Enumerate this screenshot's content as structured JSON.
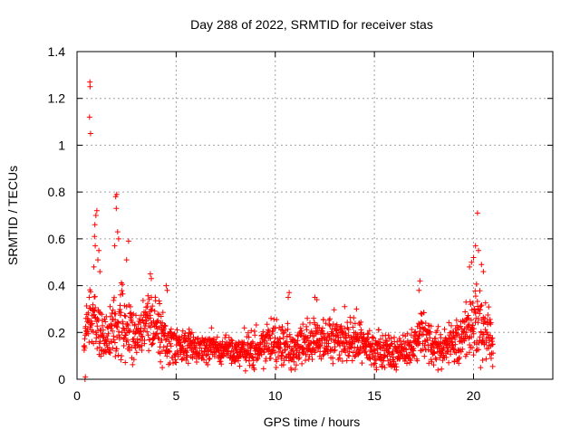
{
  "chart_data": {
    "type": "scatter",
    "title": "Day 288 of 2022, SRMTID for receiver stas",
    "xlabel": "GPS time / hours",
    "ylabel": "SRMTID / TECUs",
    "xlim": [
      0,
      24
    ],
    "ylim": [
      0,
      1.4
    ],
    "x_ticks": [
      0,
      5,
      10,
      15,
      20
    ],
    "x_tick_labels": [
      "0",
      "5",
      "10",
      "15",
      "20"
    ],
    "y_ticks": [
      0,
      0.2,
      0.4,
      0.6,
      0.8,
      1.0,
      1.2,
      1.4
    ],
    "y_tick_labels": [
      "0",
      "0.2",
      "0.4",
      "0.6",
      "0.8",
      "1",
      "1.2",
      "1.4"
    ],
    "grid": true,
    "marker": "+",
    "color": "#ff0000",
    "series": [
      {
        "name": "SRMTID",
        "envelope_hours": [
          0.35,
          0.6,
          1.0,
          1.5,
          2.0,
          2.5,
          3.0,
          3.5,
          4.0,
          4.5,
          5.0,
          6.0,
          7.0,
          8.0,
          9.0,
          10.0,
          10.5,
          11.0,
          12.0,
          13.0,
          14.0,
          15.0,
          16.0,
          17.0,
          17.5,
          18.0,
          19.0,
          19.5,
          20.0,
          20.5,
          21.0
        ],
        "envelope_median": [
          0.14,
          0.3,
          0.22,
          0.17,
          0.24,
          0.22,
          0.2,
          0.25,
          0.24,
          0.15,
          0.15,
          0.13,
          0.13,
          0.12,
          0.14,
          0.17,
          0.15,
          0.13,
          0.17,
          0.17,
          0.16,
          0.13,
          0.11,
          0.14,
          0.2,
          0.13,
          0.15,
          0.2,
          0.23,
          0.21,
          0.17
        ],
        "envelope_spread": [
          0.03,
          0.08,
          0.08,
          0.07,
          0.1,
          0.08,
          0.07,
          0.08,
          0.08,
          0.05,
          0.05,
          0.04,
          0.04,
          0.04,
          0.05,
          0.06,
          0.06,
          0.05,
          0.06,
          0.06,
          0.05,
          0.05,
          0.04,
          0.05,
          0.07,
          0.05,
          0.05,
          0.07,
          0.09,
          0.08,
          0.06
        ],
        "outliers": [
          {
            "x": 0.4,
            "y": 0.0
          },
          {
            "x": 0.42,
            "y": 0.01
          },
          {
            "x": 0.65,
            "y": 1.27
          },
          {
            "x": 0.66,
            "y": 1.25
          },
          {
            "x": 0.63,
            "y": 1.12
          },
          {
            "x": 0.68,
            "y": 1.05
          },
          {
            "x": 1.0,
            "y": 0.72
          },
          {
            "x": 0.95,
            "y": 0.7
          },
          {
            "x": 0.9,
            "y": 0.66
          },
          {
            "x": 0.88,
            "y": 0.61
          },
          {
            "x": 0.92,
            "y": 0.57
          },
          {
            "x": 1.1,
            "y": 0.55
          },
          {
            "x": 1.05,
            "y": 0.51
          },
          {
            "x": 0.85,
            "y": 0.48
          },
          {
            "x": 1.15,
            "y": 0.46
          },
          {
            "x": 1.95,
            "y": 0.78
          },
          {
            "x": 2.0,
            "y": 0.79
          },
          {
            "x": 1.98,
            "y": 0.73
          },
          {
            "x": 2.05,
            "y": 0.63
          },
          {
            "x": 2.1,
            "y": 0.6
          },
          {
            "x": 1.9,
            "y": 0.57
          },
          {
            "x": 2.6,
            "y": 0.59
          },
          {
            "x": 2.5,
            "y": 0.51
          },
          {
            "x": 3.7,
            "y": 0.45
          },
          {
            "x": 3.75,
            "y": 0.43
          },
          {
            "x": 4.5,
            "y": 0.4
          },
          {
            "x": 4.55,
            "y": 0.38
          },
          {
            "x": 20.2,
            "y": 0.71
          },
          {
            "x": 20.1,
            "y": 0.57
          },
          {
            "x": 20.25,
            "y": 0.55
          },
          {
            "x": 20.0,
            "y": 0.52
          },
          {
            "x": 19.9,
            "y": 0.5
          },
          {
            "x": 19.8,
            "y": 0.48
          },
          {
            "x": 20.4,
            "y": 0.49
          },
          {
            "x": 20.5,
            "y": 0.46
          },
          {
            "x": 17.3,
            "y": 0.42
          },
          {
            "x": 17.25,
            "y": 0.38
          },
          {
            "x": 10.7,
            "y": 0.37
          },
          {
            "x": 10.65,
            "y": 0.35
          },
          {
            "x": 12.0,
            "y": 0.35
          },
          {
            "x": 12.1,
            "y": 0.34
          },
          {
            "x": 13.5,
            "y": 0.31
          },
          {
            "x": 14.1,
            "y": 0.3
          },
          {
            "x": 10.8,
            "y": 0.04
          },
          {
            "x": 15.1,
            "y": 0.05
          },
          {
            "x": 4.3,
            "y": 0.05
          },
          {
            "x": 16.1,
            "y": 0.04
          }
        ]
      }
    ]
  }
}
